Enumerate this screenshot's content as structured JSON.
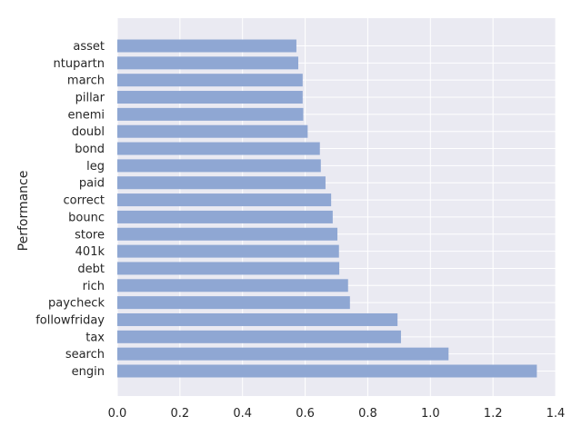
{
  "chart_data": {
    "type": "bar",
    "orientation": "horizontal",
    "title": "",
    "xlabel": "",
    "ylabel": "Performance",
    "xlim": [
      0,
      1.4
    ],
    "xticks": [
      "0.0",
      "0.2",
      "0.4",
      "0.6",
      "0.8",
      "1.0",
      "1.2",
      "1.4"
    ],
    "grid": true,
    "bar_color": "#8fa7d3",
    "plot_background": "#eaeaf2",
    "categories": [
      "asset",
      "ntupartn",
      "march",
      "pillar",
      "enemi",
      "doubl",
      "bond",
      "leg",
      "paid",
      "correct",
      "bounc",
      "store",
      "401k",
      "debt",
      "rich",
      "paycheck",
      "followfriday",
      "tax",
      "search",
      "engin"
    ],
    "values": [
      0.572,
      0.578,
      0.592,
      0.592,
      0.594,
      0.608,
      0.647,
      0.65,
      0.665,
      0.683,
      0.688,
      0.703,
      0.708,
      0.709,
      0.737,
      0.743,
      0.895,
      0.906,
      1.058,
      1.34
    ]
  }
}
